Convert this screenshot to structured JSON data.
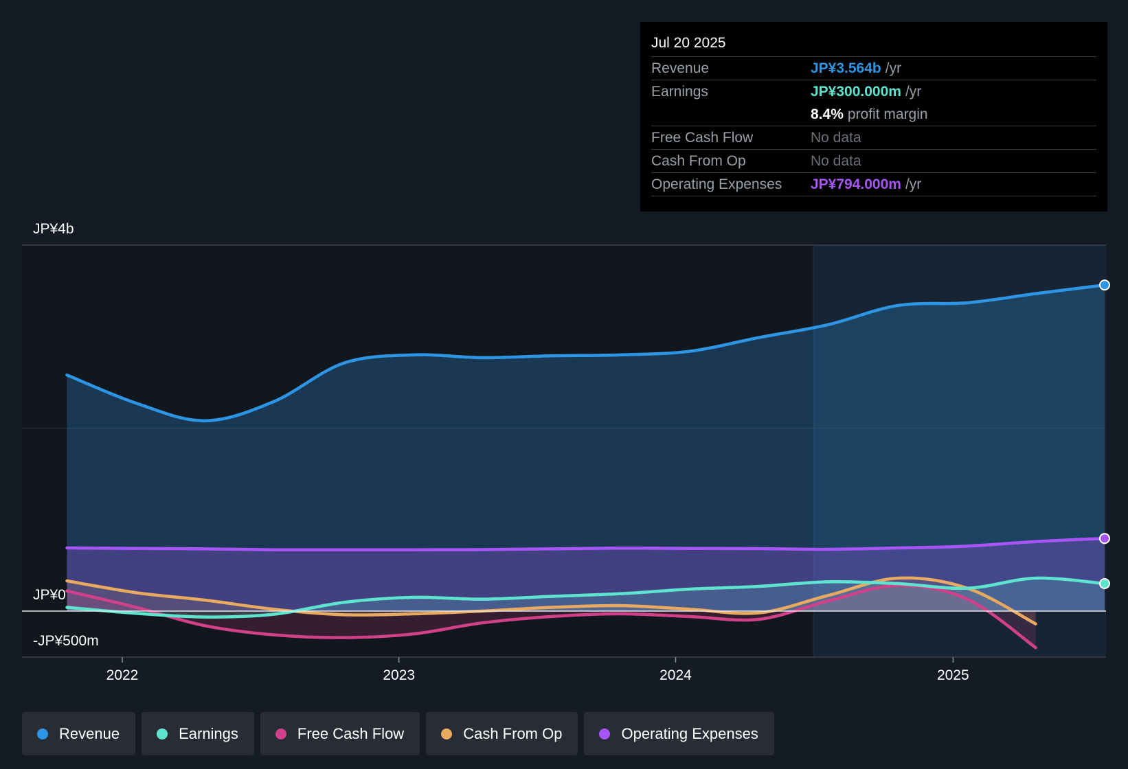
{
  "tooltip": {
    "date": "Jul 20 2025",
    "rows": [
      {
        "label": "Revenue",
        "value": "JP¥3.564b",
        "unit": "/yr",
        "color": "#2d95e3"
      },
      {
        "label": "Earnings",
        "value": "JP¥300.000m",
        "unit": "/yr",
        "color": "#5ee3cf"
      },
      {
        "label": "",
        "value": "8.4%",
        "unit": "profit margin",
        "color": "#ffffff"
      },
      {
        "label": "Free Cash Flow",
        "value": "No data",
        "unit": "",
        "color": "#6b7079"
      },
      {
        "label": "Cash From Op",
        "value": "No data",
        "unit": "",
        "color": "#6b7079"
      },
      {
        "label": "Operating Expenses",
        "value": "JP¥794.000m",
        "unit": "/yr",
        "color": "#a855f7"
      }
    ]
  },
  "legend": [
    {
      "label": "Revenue",
      "color": "#2d95e3"
    },
    {
      "label": "Earnings",
      "color": "#5ee3cf"
    },
    {
      "label": "Free Cash Flow",
      "color": "#d0418a"
    },
    {
      "label": "Cash From Op",
      "color": "#e8a961"
    },
    {
      "label": "Operating Expenses",
      "color": "#a855f7"
    }
  ],
  "chart_data": {
    "type": "line",
    "y_unit": "JP¥ (millions)",
    "ylim": [
      -500,
      4000
    ],
    "y_ticks": [
      {
        "value": 4000,
        "label": "JP¥4b"
      },
      {
        "value": 0,
        "label": "JP¥0"
      },
      {
        "value": -500,
        "label": "-JP¥500m"
      }
    ],
    "x_ticks": [
      "2022",
      "2023",
      "2024",
      "2025"
    ],
    "xlim": [
      "2021-08-15",
      "2025-07-20"
    ],
    "forecast_start": "2024-07-01",
    "grid": true,
    "series": [
      {
        "name": "Revenue",
        "color": "#2d95e3",
        "x": [
          "2021-10-20",
          "2022-01-20",
          "2022-04-20",
          "2022-07-20",
          "2022-10-20",
          "2023-01-20",
          "2023-04-20",
          "2023-07-20",
          "2023-10-20",
          "2024-01-20",
          "2024-04-20",
          "2024-07-20",
          "2024-10-20",
          "2025-01-20",
          "2025-04-20",
          "2025-07-20"
        ],
        "values": [
          2580,
          2270,
          2080,
          2290,
          2710,
          2800,
          2770,
          2790,
          2800,
          2840,
          2990,
          3130,
          3340,
          3370,
          3470,
          3564
        ]
      },
      {
        "name": "Earnings",
        "color": "#5ee3cf",
        "x": [
          "2021-10-20",
          "2022-01-20",
          "2022-04-20",
          "2022-07-20",
          "2022-10-20",
          "2023-01-20",
          "2023-04-20",
          "2023-07-20",
          "2023-10-20",
          "2024-01-20",
          "2024-04-20",
          "2024-07-20",
          "2024-10-20",
          "2025-01-20",
          "2025-04-20",
          "2025-07-20"
        ],
        "values": [
          40,
          -25,
          -65,
          -35,
          95,
          150,
          130,
          160,
          190,
          240,
          270,
          320,
          300,
          250,
          360,
          300
        ]
      },
      {
        "name": "Free Cash Flow",
        "color": "#d0418a",
        "x": [
          "2021-10-20",
          "2022-01-20",
          "2022-04-20",
          "2022-07-20",
          "2022-10-20",
          "2023-01-20",
          "2023-04-20",
          "2023-07-20",
          "2023-10-20",
          "2024-01-20",
          "2024-04-20",
          "2024-07-20",
          "2024-10-20",
          "2025-01-20",
          "2025-04-20"
        ],
        "values": [
          220,
          40,
          -160,
          -260,
          -290,
          -250,
          -130,
          -60,
          -30,
          -60,
          -90,
          110,
          280,
          130,
          -400
        ]
      },
      {
        "name": "Cash From Op",
        "color": "#e8a961",
        "x": [
          "2021-10-20",
          "2022-01-20",
          "2022-04-20",
          "2022-07-20",
          "2022-10-20",
          "2023-01-20",
          "2023-04-20",
          "2023-07-20",
          "2023-10-20",
          "2024-01-20",
          "2024-04-20",
          "2024-07-20",
          "2024-10-20",
          "2025-01-20",
          "2025-04-20"
        ],
        "values": [
          330,
          200,
          120,
          20,
          -40,
          -30,
          0,
          40,
          60,
          20,
          -20,
          170,
          360,
          250,
          -140
        ]
      },
      {
        "name": "Operating Expenses",
        "color": "#a855f7",
        "x": [
          "2021-10-20",
          "2022-01-20",
          "2022-04-20",
          "2022-07-20",
          "2022-10-20",
          "2023-01-20",
          "2023-04-20",
          "2023-07-20",
          "2023-10-20",
          "2024-01-20",
          "2024-04-20",
          "2024-07-20",
          "2024-10-20",
          "2025-01-20",
          "2025-04-20",
          "2025-07-20"
        ],
        "values": [
          690,
          685,
          680,
          670,
          670,
          670,
          672,
          680,
          688,
          685,
          683,
          675,
          690,
          710,
          760,
          794
        ]
      }
    ]
  }
}
